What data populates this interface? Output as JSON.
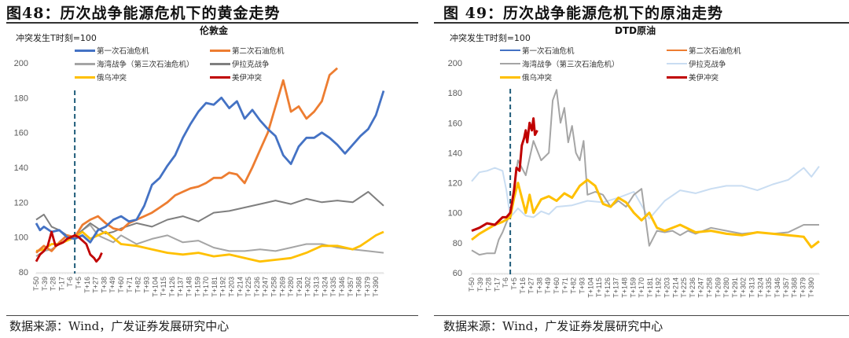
{
  "left": {
    "figure_title": "图48：历次战争能源危机下的黄金走势",
    "chart_title": "伦敦金",
    "y_note": "冲突发生T时刻=100",
    "source": "数据来源：Wind，广发证券发展研究中心"
  },
  "right": {
    "figure_title": "图 49：历次战争能源危机下的原油走势",
    "chart_title": "DTD原油",
    "y_note": "冲突发生T时刻=100",
    "source": "数据来源：Wind，广发证券发展研究中心"
  },
  "legend_labels": [
    "第一次石油危机",
    "第二次石油危机",
    "海湾战争（第三次石油危机）",
    "伊拉克战争",
    "俄乌冲突",
    "美伊冲突"
  ],
  "chart_data": [
    {
      "type": "line",
      "title": "伦敦金",
      "ylabel": "冲突发生T时刻=100",
      "ylim": [
        80,
        200
      ],
      "yticks": [
        80,
        100,
        120,
        140,
        160,
        180,
        200
      ],
      "x_tick_labels": [
        "T-50",
        "T-39",
        "T-28",
        "T-17",
        "T-6",
        "T+5",
        "T+16",
        "T+27",
        "T+38",
        "T+49",
        "T+60",
        "T+71",
        "T+82",
        "T+93",
        "T+104",
        "T+115",
        "T+126",
        "T+137",
        "T+148",
        "T+159",
        "T+170",
        "T+181",
        "T+192",
        "T+203",
        "T+214",
        "T+225",
        "T+236",
        "T+247",
        "T+258",
        "T+269",
        "T+280",
        "T+291",
        "T+302",
        "T+313",
        "T+324",
        "T+335",
        "T+346",
        "T+357",
        "T+368",
        "T+379",
        "T+390"
      ],
      "event_line": "T+0",
      "grid": false,
      "legend_position": "top",
      "series": [
        {
          "name": "第一次石油危机",
          "color": "#4472C4",
          "x": [
            -50,
            -45,
            -40,
            -30,
            -20,
            -10,
            0,
            10,
            20,
            30,
            40,
            50,
            60,
            70,
            80,
            90,
            100,
            110,
            120,
            130,
            140,
            150,
            160,
            170,
            180,
            190,
            200,
            210,
            220,
            230,
            240,
            250,
            260,
            270,
            280,
            290,
            300,
            310,
            320,
            330,
            340,
            350,
            360,
            370,
            380,
            390,
            400
          ],
          "values": [
            108,
            104,
            106,
            103,
            104,
            100,
            99,
            101,
            97,
            104,
            106,
            110,
            112,
            109,
            110,
            118,
            130,
            134,
            141,
            147,
            157,
            165,
            172,
            177,
            176,
            180,
            174,
            178,
            168,
            173,
            167,
            162,
            158,
            147,
            142,
            152,
            157,
            157,
            160,
            157,
            153,
            148,
            153,
            158,
            162,
            170,
            184
          ]
        },
        {
          "name": "第二次石油危机",
          "color": "#ED7D31",
          "x": [
            -50,
            -40,
            -30,
            -20,
            -10,
            0,
            10,
            20,
            30,
            40,
            50,
            60,
            70,
            80,
            90,
            100,
            110,
            120,
            130,
            140,
            150,
            160,
            170,
            180,
            190,
            200,
            210,
            220,
            230,
            240,
            250,
            260,
            270,
            280,
            290,
            300,
            310,
            320,
            330,
            340
          ],
          "values": [
            91,
            95,
            92,
            97,
            101,
            100,
            107,
            110,
            112,
            108,
            105,
            104,
            108,
            110,
            112,
            114,
            117,
            120,
            124,
            126,
            128,
            129,
            131,
            134,
            134,
            137,
            136,
            131,
            140,
            150,
            160,
            175,
            190,
            172,
            175,
            168,
            172,
            178,
            193,
            197
          ]
        },
        {
          "name": "海湾战争（第三次石油危机）",
          "color": "#A5A5A5",
          "x": [
            -50,
            -40,
            -30,
            -20,
            -10,
            0,
            10,
            20,
            30,
            40,
            50,
            60,
            80,
            100,
            120,
            140,
            160,
            180,
            200,
            220,
            240,
            260,
            280,
            300,
            320,
            340,
            360,
            380,
            400
          ],
          "values": [
            89,
            92,
            93,
            96,
            98,
            100,
            104,
            107,
            101,
            99,
            97,
            101,
            96,
            99,
            101,
            97,
            98,
            94,
            92,
            92,
            93,
            92,
            94,
            96,
            96,
            94,
            93,
            92,
            91
          ]
        },
        {
          "name": "伊拉克战争",
          "color": "#7F7F7F",
          "x": [
            -50,
            -40,
            -30,
            -20,
            -10,
            0,
            10,
            20,
            30,
            40,
            50,
            60,
            80,
            100,
            120,
            140,
            160,
            180,
            200,
            220,
            240,
            260,
            280,
            300,
            320,
            340,
            360,
            380,
            390,
            400
          ],
          "values": [
            110,
            113,
            106,
            104,
            101,
            100,
            104,
            108,
            105,
            102,
            103,
            105,
            108,
            106,
            110,
            112,
            109,
            114,
            115,
            117,
            119,
            121,
            119,
            122,
            120,
            121,
            120,
            126,
            122,
            118
          ]
        },
        {
          "name": "俄乌冲突",
          "color": "#FFC000",
          "x": [
            -50,
            -40,
            -30,
            -20,
            -10,
            0,
            10,
            20,
            30,
            40,
            60,
            80,
            100,
            120,
            140,
            160,
            180,
            200,
            220,
            240,
            260,
            280,
            300,
            320,
            340,
            360,
            370,
            380,
            390,
            400
          ],
          "values": [
            92,
            93,
            96,
            96,
            98,
            100,
            103,
            99,
            101,
            103,
            96,
            95,
            93,
            91,
            90,
            91,
            89,
            90,
            88,
            86,
            87,
            88,
            91,
            95,
            95,
            93,
            95,
            98,
            101,
            103
          ]
        },
        {
          "name": "美伊冲突",
          "color": "#C00000",
          "x": [
            -50,
            -45,
            -40,
            -35,
            -30,
            -25,
            -20,
            -15,
            -10,
            -5,
            0,
            5,
            10,
            15,
            20,
            25,
            28,
            32,
            35
          ],
          "values": [
            86,
            90,
            92,
            95,
            103,
            95,
            96,
            97,
            99,
            100,
            101,
            100,
            98,
            96,
            90,
            88,
            86,
            88,
            91
          ]
        }
      ]
    },
    {
      "type": "line",
      "title": "DTD原油",
      "ylabel": "冲突发生T时刻=100",
      "ylim": [
        60,
        200
      ],
      "yticks": [
        60,
        80,
        100,
        120,
        140,
        160,
        180,
        200
      ],
      "x_tick_labels": [
        "T-50",
        "T-39",
        "T-28",
        "T-17",
        "T-6",
        "T+5",
        "T+16",
        "T+27",
        "T+38",
        "T+49",
        "T+60",
        "T+71",
        "T+82",
        "T+93",
        "T+104",
        "T+115",
        "T+126",
        "T+137",
        "T+148",
        "T+159",
        "T+170",
        "T+181",
        "T+192",
        "T+203",
        "T+214",
        "T+225",
        "T+236",
        "T+247",
        "T+258",
        "T+269",
        "T+280",
        "T+291",
        "T+302",
        "T+313",
        "T+324",
        "T+335",
        "T+346",
        "T+357",
        "T+368",
        "T+379",
        "T+390"
      ],
      "event_line": "T+0",
      "grid": false,
      "legend_position": "top",
      "series": [
        {
          "name": "第一次石油危机",
          "color": "#4472C4",
          "x": [],
          "values": []
        },
        {
          "name": "第二次石油危机",
          "color": "#ED7D31",
          "x": [],
          "values": []
        },
        {
          "name": "海湾战争（第三次石油危机）",
          "color": "#A5A5A5",
          "x": [
            -50,
            -40,
            -30,
            -20,
            -15,
            -10,
            0,
            5,
            10,
            20,
            30,
            40,
            50,
            55,
            60,
            65,
            70,
            75,
            80,
            85,
            90,
            95,
            100,
            110,
            120,
            130,
            140,
            150,
            160,
            170,
            180,
            190,
            200,
            210,
            220,
            230,
            240,
            260,
            280,
            300,
            320,
            340,
            360,
            380,
            400
          ],
          "values": [
            75,
            72,
            73,
            73,
            82,
            87,
            100,
            118,
            135,
            125,
            148,
            135,
            140,
            175,
            182,
            160,
            170,
            147,
            158,
            140,
            135,
            148,
            112,
            114,
            112,
            104,
            108,
            104,
            112,
            116,
            78,
            88,
            87,
            88,
            85,
            88,
            86,
            90,
            88,
            86,
            87,
            86,
            87,
            92,
            92
          ]
        },
        {
          "name": "伊拉克战争",
          "color": "#C9DDF2",
          "x": [
            -50,
            -40,
            -30,
            -20,
            -10,
            -5,
            0,
            10,
            20,
            30,
            40,
            50,
            60,
            80,
            100,
            120,
            140,
            160,
            180,
            200,
            220,
            240,
            260,
            280,
            300,
            320,
            340,
            360,
            380,
            390,
            400
          ],
          "values": [
            121,
            127,
            128,
            130,
            128,
            115,
            97,
            103,
            98,
            97,
            101,
            99,
            104,
            105,
            108,
            107,
            110,
            114,
            96,
            108,
            115,
            113,
            116,
            118,
            118,
            115,
            119,
            122,
            130,
            124,
            131
          ]
        },
        {
          "name": "俄乌冲突",
          "color": "#FFC000",
          "x": [
            -50,
            -40,
            -30,
            -20,
            -10,
            0,
            5,
            10,
            15,
            20,
            25,
            30,
            40,
            50,
            60,
            70,
            80,
            90,
            100,
            110,
            120,
            130,
            140,
            150,
            160,
            170,
            180,
            190,
            200,
            220,
            240,
            260,
            280,
            300,
            320,
            340,
            360,
            380,
            390,
            400
          ],
          "values": [
            82,
            86,
            89,
            92,
            94,
            97,
            110,
            120,
            110,
            100,
            112,
            100,
            109,
            111,
            108,
            113,
            110,
            118,
            122,
            118,
            106,
            104,
            110,
            107,
            100,
            95,
            100,
            90,
            88,
            92,
            87,
            88,
            86,
            85,
            87,
            86,
            85,
            84,
            77,
            81
          ]
        },
        {
          "name": "美伊冲突",
          "color": "#C00000",
          "x": [
            -50,
            -40,
            -30,
            -20,
            -10,
            -5,
            0,
            5,
            8,
            12,
            15,
            18,
            20,
            22,
            25,
            28,
            30,
            32,
            35
          ],
          "values": [
            88,
            90,
            93,
            92,
            97,
            97,
            100,
            115,
            130,
            128,
            145,
            150,
            155,
            147,
            160,
            155,
            163,
            152,
            155
          ]
        }
      ]
    }
  ]
}
